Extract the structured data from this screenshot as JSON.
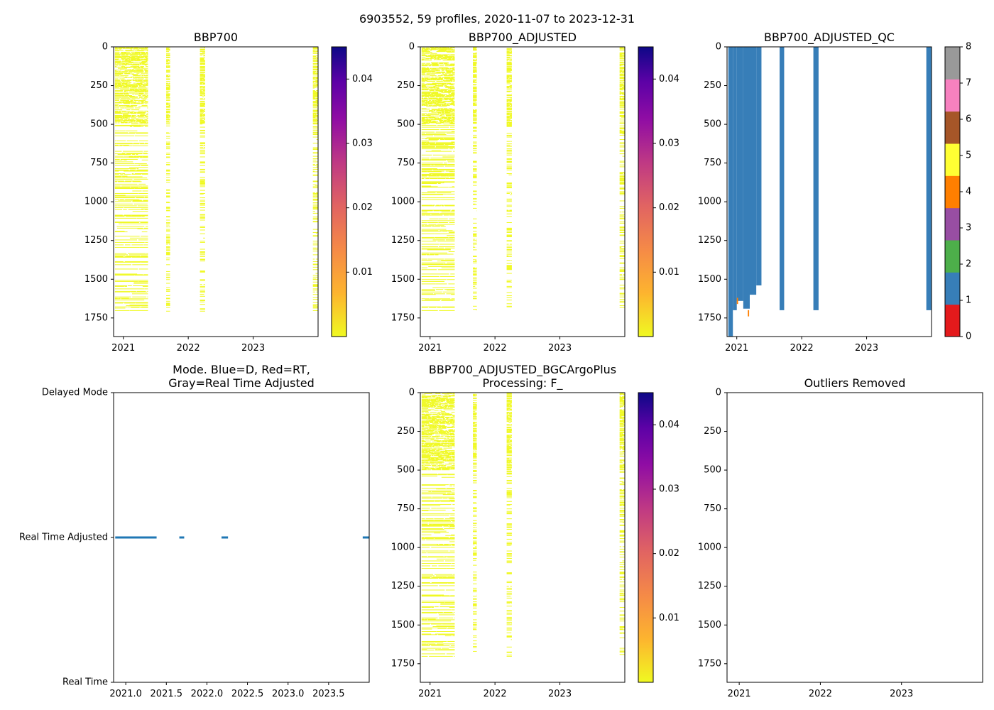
{
  "figure_title": "6903552, 59 profiles, 2020-11-07 to 2023-12-31",
  "chart_data": [
    {
      "id": "bbp700",
      "type": "heatmap",
      "title": "BBP700",
      "xlabel": "",
      "ylabel": "",
      "xlim": [
        2020.85,
        2024.0
      ],
      "ylim": [
        1870,
        0
      ],
      "x_ticks": [
        2021,
        2022,
        2023
      ],
      "x_tick_labels": [
        "2021",
        "2022",
        "2023"
      ],
      "y_ticks": [
        0,
        250,
        500,
        750,
        1000,
        1250,
        1500,
        1750
      ],
      "y_tick_labels": [
        "0",
        "250",
        "500",
        "750",
        "1000",
        "1250",
        "1500",
        "1750"
      ],
      "colorbar": {
        "cmap": "plasma_r",
        "range": [
          0.0,
          0.045
        ],
        "ticks": [
          0.01,
          0.02,
          0.03,
          0.04
        ],
        "tick_labels": [
          "0.01",
          "0.02",
          "0.03",
          "0.04"
        ]
      },
      "profile_groups": [
        {
          "x_start": 2020.87,
          "x_end": 2021.38,
          "max_depth": 1700,
          "color": "#f0f921"
        },
        {
          "x_start": 2021.66,
          "x_end": 2021.72,
          "max_depth": 1710,
          "color": "#f0f921"
        },
        {
          "x_start": 2022.18,
          "x_end": 2022.26,
          "max_depth": 1705,
          "color": "#f0f921"
        },
        {
          "x_start": 2023.92,
          "x_end": 2024.0,
          "max_depth": 1700,
          "color": "#f0f921"
        }
      ]
    },
    {
      "id": "bbp700-adjusted",
      "type": "heatmap",
      "title": "BBP700_ADJUSTED",
      "xlabel": "",
      "ylabel": "",
      "xlim": [
        2020.85,
        2024.0
      ],
      "ylim": [
        1870,
        0
      ],
      "x_ticks": [
        2021,
        2022,
        2023
      ],
      "x_tick_labels": [
        "2021",
        "2022",
        "2023"
      ],
      "y_ticks": [
        0,
        250,
        500,
        750,
        1000,
        1250,
        1500,
        1750
      ],
      "y_tick_labels": [
        "0",
        "250",
        "500",
        "750",
        "1000",
        "1250",
        "1500",
        "1750"
      ],
      "colorbar": {
        "cmap": "plasma_r",
        "range": [
          0.0,
          0.045
        ],
        "ticks": [
          0.01,
          0.02,
          0.03,
          0.04
        ],
        "tick_labels": [
          "0.01",
          "0.02",
          "0.03",
          "0.04"
        ]
      },
      "profile_groups": [
        {
          "x_start": 2020.87,
          "x_end": 2021.38,
          "max_depth": 1700,
          "color": "#f0f921"
        },
        {
          "x_start": 2021.66,
          "x_end": 2021.72,
          "max_depth": 1700,
          "color": "#f0f921"
        },
        {
          "x_start": 2022.18,
          "x_end": 2022.26,
          "max_depth": 1705,
          "color": "#f0f921"
        },
        {
          "x_start": 2023.92,
          "x_end": 2024.0,
          "max_depth": 1700,
          "color": "#f0f921"
        }
      ]
    },
    {
      "id": "bbp700-adjusted-qc",
      "type": "heatmap",
      "title": "BBP700_ADJUSTED_QC",
      "xlabel": "",
      "ylabel": "",
      "xlim": [
        2020.85,
        2024.0
      ],
      "ylim": [
        1870,
        0
      ],
      "x_ticks": [
        2021,
        2022,
        2023
      ],
      "x_tick_labels": [
        "2021",
        "2022",
        "2023"
      ],
      "y_ticks": [
        0,
        250,
        500,
        750,
        1000,
        1250,
        1500,
        1750
      ],
      "y_tick_labels": [
        "0",
        "250",
        "500",
        "750",
        "1000",
        "1250",
        "1500",
        "1750"
      ],
      "colorbar": {
        "cmap": "qc_categorical",
        "range": [
          0,
          8
        ],
        "colors": [
          "#e41a1c",
          "#377eb8",
          "#4daf4a",
          "#984ea3",
          "#ff7f00",
          "#ffff33",
          "#a65628",
          "#f781bf",
          "#999999"
        ],
        "ticks": [
          0,
          1,
          2,
          3,
          4,
          5,
          6,
          7,
          8
        ],
        "tick_labels": [
          "0",
          "1",
          "2",
          "3",
          "4",
          "5",
          "6",
          "7",
          "8"
        ]
      },
      "qc_bars": [
        {
          "x_start": 2020.87,
          "x_end": 2020.94,
          "top": 0,
          "bottom": 1870,
          "qc": 1
        },
        {
          "x_start": 2020.94,
          "x_end": 2021.0,
          "top": 0,
          "bottom": 1700,
          "qc": 1
        },
        {
          "x_start": 2021.0,
          "x_end": 2021.1,
          "top": 0,
          "bottom": 1640,
          "qc": 1
        },
        {
          "x_start": 2021.1,
          "x_end": 2021.2,
          "top": 0,
          "bottom": 1690,
          "qc": 1
        },
        {
          "x_start": 2021.2,
          "x_end": 2021.3,
          "top": 0,
          "bottom": 1600,
          "qc": 1
        },
        {
          "x_start": 2021.3,
          "x_end": 2021.38,
          "top": 0,
          "bottom": 1540,
          "qc": 1
        },
        {
          "x_start": 2021.66,
          "x_end": 2021.73,
          "top": 0,
          "bottom": 1700,
          "qc": 1
        },
        {
          "x_start": 2022.18,
          "x_end": 2022.26,
          "top": 0,
          "bottom": 1700,
          "qc": 1
        },
        {
          "x_start": 2023.92,
          "x_end": 2024.0,
          "top": 0,
          "bottom": 1700,
          "qc": 1
        },
        {
          "x_start": 2021.0,
          "x_end": 2021.02,
          "top": 1620,
          "bottom": 1660,
          "qc": 4
        },
        {
          "x_start": 2021.17,
          "x_end": 2021.19,
          "top": 1700,
          "bottom": 1740,
          "qc": 4
        }
      ]
    },
    {
      "id": "mode",
      "type": "scatter",
      "title_lines": [
        "Mode. Blue=D, Red=RT,",
        "Gray=Real Time Adjusted"
      ],
      "xlabel": "",
      "ylabel": "",
      "xlim": [
        2020.85,
        2024.0
      ],
      "ylim": [
        0,
        2
      ],
      "x_ticks": [
        2021.0,
        2021.5,
        2022.0,
        2022.5,
        2023.0,
        2023.5
      ],
      "x_tick_labels": [
        "2021.0",
        "2021.5",
        "2022.0",
        "2022.5",
        "2023.0",
        "2023.5"
      ],
      "y_ticks": [
        2,
        1,
        0
      ],
      "y_tick_labels": [
        "Delayed Mode",
        "Real Time Adjusted",
        "Real Time"
      ],
      "color": "#1f77b4",
      "segments": [
        {
          "x_start": 2020.87,
          "x_end": 2021.38,
          "y": 1
        },
        {
          "x_start": 2021.66,
          "x_end": 2021.72,
          "y": 1
        },
        {
          "x_start": 2022.18,
          "x_end": 2022.26,
          "y": 1
        },
        {
          "x_start": 2023.92,
          "x_end": 2024.0,
          "y": 1
        }
      ]
    },
    {
      "id": "bbp700-adjusted-bgcargoplus",
      "type": "heatmap",
      "title_lines": [
        "BBP700_ADJUSTED_BGCArgoPlus",
        "Processing: F_"
      ],
      "xlabel": "",
      "ylabel": "",
      "xlim": [
        2020.85,
        2024.0
      ],
      "ylim": [
        1870,
        0
      ],
      "x_ticks": [
        2021,
        2022,
        2023
      ],
      "x_tick_labels": [
        "2021",
        "2022",
        "2023"
      ],
      "y_ticks": [
        0,
        250,
        500,
        750,
        1000,
        1250,
        1500,
        1750
      ],
      "y_tick_labels": [
        "0",
        "250",
        "500",
        "750",
        "1000",
        "1250",
        "1500",
        "1750"
      ],
      "colorbar": {
        "cmap": "plasma_r",
        "range": [
          0.0,
          0.045
        ],
        "ticks": [
          0.01,
          0.02,
          0.03,
          0.04
        ],
        "tick_labels": [
          "0.01",
          "0.02",
          "0.03",
          "0.04"
        ]
      },
      "profile_groups": [
        {
          "x_start": 2020.87,
          "x_end": 2021.38,
          "max_depth": 1700,
          "color": "#f0f921"
        },
        {
          "x_start": 2021.66,
          "x_end": 2021.72,
          "max_depth": 1700,
          "color": "#f0f921"
        },
        {
          "x_start": 2022.18,
          "x_end": 2022.26,
          "max_depth": 1700,
          "color": "#f0f921"
        },
        {
          "x_start": 2023.92,
          "x_end": 2024.0,
          "max_depth": 1700,
          "color": "#f0f921"
        }
      ]
    },
    {
      "id": "outliers-removed",
      "type": "scatter",
      "title": "Outliers Removed",
      "xlabel": "",
      "ylabel": "",
      "xlim": [
        2020.85,
        2024.0
      ],
      "ylim": [
        1870,
        0
      ],
      "x_ticks": [
        2021,
        2022,
        2023
      ],
      "x_tick_labels": [
        "2021",
        "2022",
        "2023"
      ],
      "y_ticks": [
        0,
        250,
        500,
        750,
        1000,
        1250,
        1500,
        1750
      ],
      "y_tick_labels": [
        "0",
        "250",
        "500",
        "750",
        "1000",
        "1250",
        "1500",
        "1750"
      ],
      "points": []
    }
  ]
}
